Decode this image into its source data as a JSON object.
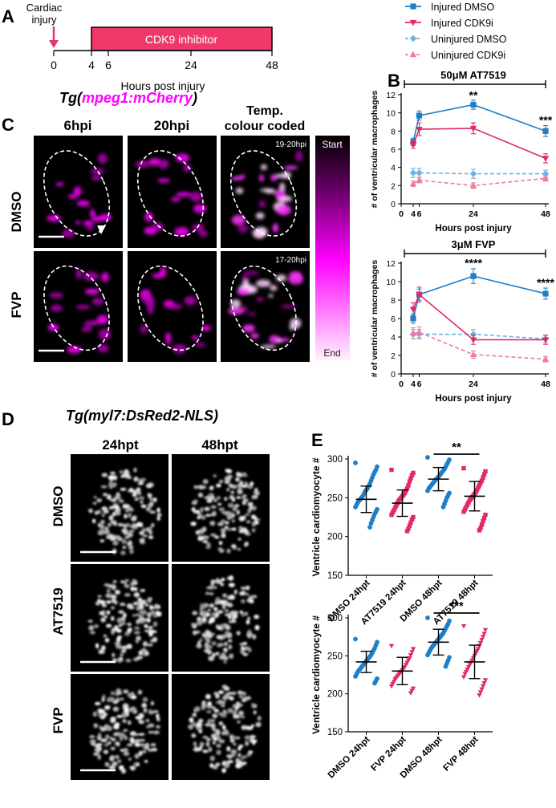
{
  "panels": {
    "A": {
      "letter": "A",
      "injury_label_line1": "Cardiac",
      "injury_label_line2": "injury",
      "treatment_label": "CDK9 inhibitor",
      "ticks": [
        "0",
        "4",
        "6",
        "24",
        "48"
      ],
      "xlabel": "Hours post injury",
      "colors": {
        "treatment_bar": "#f0386b",
        "arrow": "#e8336b"
      }
    },
    "B": {
      "letter": "B",
      "legend": [
        {
          "label": "Injured DMSO",
          "color": "#1f7fc6",
          "marker": "square",
          "dash": false
        },
        {
          "label": "Injured CDK9i",
          "color": "#e02966",
          "marker": "triangle-down",
          "dash": false
        },
        {
          "label": "Uninjured DMSO",
          "color": "#6fb0e0",
          "marker": "diamond",
          "dash": true
        },
        {
          "label": "Uninjured CDK9i",
          "color": "#f07aa0",
          "marker": "triangle-up",
          "dash": true
        }
      ]
    },
    "C": {
      "letter": "C",
      "title_prefix": "Tg(",
      "title_gene": "mpeg1:mCherry",
      "title_suffix": ")",
      "col_headers": [
        "6hpi",
        "20hpi",
        "Temp.\ncolour coded"
      ],
      "col_header_line1": "Temp.",
      "col_header_line2": "colour coded",
      "row_labels": [
        "DMSO",
        "FVP"
      ],
      "time_ranges": [
        "19-20hpi",
        "17-20hpi"
      ],
      "colorbar_start": "Start",
      "colorbar_end": "End",
      "colors": {
        "magenta": "#ff00ff"
      }
    },
    "D": {
      "letter": "D",
      "title": "Tg(myl7:DsRed2-NLS)",
      "col_headers": [
        "24hpt",
        "48hpt"
      ],
      "row_labels": [
        "DMSO",
        "AT7519",
        "FVP"
      ]
    },
    "E": {
      "letter": "E"
    }
  },
  "chart_data": [
    {
      "id": "B1",
      "type": "line",
      "title": "50μM AT7519",
      "xlabel": "Hours post injury",
      "ylabel": "# of ventricular macrophages",
      "x": [
        4,
        6,
        24,
        48
      ],
      "xticks": [
        "0",
        "4",
        "6",
        "24",
        "48"
      ],
      "xlim": [
        0,
        48
      ],
      "ylim": [
        0,
        12
      ],
      "yticks": [
        "0",
        "2",
        "4",
        "6",
        "8",
        "10",
        "12"
      ],
      "series": [
        {
          "name": "Injured DMSO",
          "values": [
            6.8,
            9.7,
            10.9,
            8.0
          ],
          "err": [
            0.4,
            0.5,
            0.5,
            0.6
          ]
        },
        {
          "name": "Injured CDK9i",
          "values": [
            6.5,
            8.2,
            8.3,
            5.0
          ],
          "err": [
            0.4,
            0.7,
            0.6,
            0.5
          ]
        },
        {
          "name": "Uninjured DMSO",
          "values": [
            3.4,
            3.4,
            3.3,
            3.3
          ],
          "err": [
            0.5,
            0.5,
            0.5,
            0.4
          ]
        },
        {
          "name": "Uninjured CDK9i",
          "values": [
            2.2,
            2.6,
            2.0,
            2.8
          ],
          "err": [
            0.3,
            0.3,
            0.3,
            0.3
          ]
        }
      ],
      "annotations": [
        {
          "x": 24,
          "text": "**",
          "y": 11.5
        },
        {
          "x": 48,
          "text": "***",
          "y": 8.8
        }
      ]
    },
    {
      "id": "B2",
      "type": "line",
      "title": "3μM FVP",
      "xlabel": "Hours post injury",
      "ylabel": "# of ventricular macrophages",
      "x": [
        4,
        6,
        24,
        48
      ],
      "xticks": [
        "0",
        "4",
        "6",
        "24",
        "48"
      ],
      "xlim": [
        0,
        48
      ],
      "ylim": [
        0,
        12
      ],
      "yticks": [
        "0",
        "2",
        "4",
        "6",
        "8",
        "10",
        "12"
      ],
      "series": [
        {
          "name": "Injured DMSO",
          "values": [
            6.0,
            8.6,
            10.6,
            8.7
          ],
          "err": [
            0.5,
            0.6,
            0.8,
            0.6
          ]
        },
        {
          "name": "Injured CDK9i",
          "values": [
            7.0,
            8.6,
            3.7,
            3.7
          ],
          "err": [
            0.7,
            0.8,
            0.5,
            0.5
          ]
        },
        {
          "name": "Uninjured DMSO",
          "values": [
            4.3,
            4.3,
            4.3,
            3.8
          ],
          "err": [
            0.5,
            0.5,
            0.5,
            0.4
          ]
        },
        {
          "name": "Uninjured CDK9i",
          "values": [
            4.4,
            4.5,
            2.1,
            1.6
          ],
          "err": [
            0.6,
            0.6,
            0.4,
            0.3
          ]
        }
      ],
      "annotations": [
        {
          "x": 24,
          "text": "****",
          "y": 11.6
        },
        {
          "x": 48,
          "text": "****",
          "y": 9.5
        }
      ]
    },
    {
      "id": "E1",
      "type": "scatter",
      "ylabel": "Ventricle cardiomyocyte #",
      "categories": [
        "DMSO 24hpt",
        "AT7519 24hpt",
        "DMSO 48hpt",
        "AT7519 48hpt"
      ],
      "ylim": [
        150,
        300
      ],
      "yticks": [
        "150",
        "200",
        "250",
        "300"
      ],
      "series": [
        {
          "values": [
            295,
            290,
            286,
            283,
            280,
            276,
            272,
            268,
            265,
            262,
            260,
            258,
            255,
            252,
            250,
            248,
            246,
            244,
            241,
            238,
            235,
            232,
            229,
            225,
            221,
            217,
            212
          ],
          "mean": 248,
          "sd": 17
        },
        {
          "values": [
            286,
            282,
            279,
            275,
            271,
            266,
            262,
            259,
            256,
            254,
            252,
            250,
            248,
            246,
            243,
            240,
            237,
            234,
            231,
            228,
            225,
            222,
            218,
            214,
            210,
            207
          ],
          "mean": 243,
          "sd": 17
        },
        {
          "values": [
            302,
            299,
            296,
            293,
            290,
            287,
            285,
            283,
            281,
            279,
            277,
            275,
            274,
            272,
            270,
            268,
            266,
            264,
            262,
            259,
            256,
            253,
            250,
            246,
            242,
            238
          ],
          "mean": 274,
          "sd": 15
        },
        {
          "values": [
            288,
            284,
            280,
            276,
            272,
            269,
            266,
            263,
            260,
            257,
            255,
            253,
            251,
            249,
            247,
            244,
            241,
            238,
            235,
            232,
            228,
            224,
            220,
            215,
            211,
            208
          ],
          "mean": 252,
          "sd": 19
        }
      ],
      "significance": {
        "text": "**",
        "from": 2,
        "to": 3
      }
    },
    {
      "id": "E2",
      "type": "scatter",
      "ylabel": "Ventricle cardiomyocyte #",
      "categories": [
        "DMSO 24hpt",
        "FVP 24hpt",
        "DMSO 48hpt",
        "FVP 48hpt"
      ],
      "ylim": [
        150,
        300
      ],
      "yticks": [
        "150",
        "200",
        "250",
        "300"
      ],
      "series": [
        {
          "values": [
            272,
            268,
            264,
            260,
            257,
            254,
            251,
            249,
            247,
            245,
            243,
            241,
            239,
            237,
            235,
            233,
            231,
            229,
            226,
            223,
            220,
            217,
            214
          ],
          "mean": 242,
          "sd": 14
        },
        {
          "values": [
            263,
            259,
            255,
            251,
            247,
            244,
            241,
            238,
            235,
            233,
            231,
            229,
            227,
            225,
            223,
            221,
            219,
            216,
            213,
            210,
            207,
            204,
            201
          ],
          "mean": 230,
          "sd": 18
        },
        {
          "values": [
            300,
            296,
            292,
            289,
            286,
            283,
            280,
            278,
            276,
            274,
            272,
            270,
            268,
            266,
            264,
            262,
            260,
            257,
            254,
            251,
            248,
            244,
            240,
            236
          ],
          "mean": 268,
          "sd": 17
        },
        {
          "values": [
            289,
            284,
            279,
            275,
            271,
            267,
            263,
            259,
            256,
            253,
            250,
            247,
            244,
            241,
            238,
            235,
            232,
            229,
            226,
            222,
            218,
            214,
            210,
            206,
            202,
            198
          ],
          "mean": 242,
          "sd": 22
        }
      ],
      "significance": {
        "text": "***",
        "from": 2,
        "to": 3
      }
    }
  ]
}
